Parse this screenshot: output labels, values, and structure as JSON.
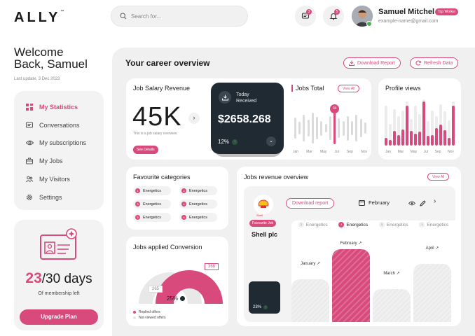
{
  "brand": {
    "name": "ALLY",
    "tm": "™",
    "accent": "#d94a7c",
    "dark": "#1f2a33"
  },
  "search": {
    "placeholder": "Search for..."
  },
  "notifications": {
    "messages_count": "3",
    "alerts_count": "5"
  },
  "user": {
    "name": "Samuel Mitchel",
    "tag": "Top Worker",
    "email": "example-name@gmail.com"
  },
  "welcome": {
    "line1": "Welcome",
    "line2": "Back, Samuel",
    "last_update": "Last update, 3 Dec 2023"
  },
  "sidebar": {
    "items": [
      {
        "label": "My Statistics",
        "icon": "grid-icon",
        "active": true
      },
      {
        "label": "Conversations",
        "icon": "chat-icon"
      },
      {
        "label": "My subscriptions",
        "icon": "eye-icon"
      },
      {
        "label": "My Jobs",
        "icon": "briefcase-icon"
      },
      {
        "label": "My Visitors",
        "icon": "users-icon"
      },
      {
        "label": "Settings",
        "icon": "gear-icon"
      }
    ]
  },
  "membership": {
    "days_used": "23",
    "days_total": "/30 days",
    "label": "Of membership left",
    "button": "Upgrade Plan"
  },
  "overview": {
    "title": "Your career overview",
    "download": "Download Report",
    "refresh": "Refresh Data"
  },
  "salary": {
    "title": "Job Salary Revenue",
    "value": "45K",
    "caption": "This is a job salary overview",
    "details": "See Details"
  },
  "today": {
    "label1": "Today",
    "label2": "Received",
    "amount": "$2658.268",
    "percent": "12%"
  },
  "jobs_total": {
    "title": "Jobs Total",
    "view_all": "View All",
    "highlight": "34",
    "highlight_fraction": 0.66,
    "months": [
      "Jan",
      "Mar",
      "May",
      "Jul",
      "Sep",
      "Nov"
    ],
    "bars": [
      0.42,
      0.25,
      0.55,
      0.35,
      0.62,
      0.45,
      0.3,
      0.18,
      0.48,
      0.66,
      0.4,
      0.3,
      0.5,
      0.28,
      0.55,
      0.38,
      0.22
    ],
    "highlight_index": 9
  },
  "profile": {
    "title": "Profile views",
    "months": [
      "Jan",
      "Mar",
      "May",
      "Jul",
      "Sep",
      "Nov"
    ],
    "bars": [
      0.82,
      0.45,
      0.75,
      0.6,
      0.72,
      0.9,
      0.55,
      0.82,
      0.65,
      0.95,
      0.5,
      0.72,
      0.6,
      0.85,
      0.7,
      0.52,
      0.9
    ],
    "fill": [
      0.2,
      0.25,
      0.4,
      0.35,
      0.45,
      0.9,
      0.55,
      0.3,
      0.45,
      0.95,
      0.4,
      0.3,
      0.6,
      0.5,
      0.45,
      0.3,
      0.9
    ]
  },
  "favourite": {
    "title": "Favourite categories",
    "items": [
      {
        "n": "1",
        "label": "Energetics"
      },
      {
        "n": "2",
        "label": "Energetics"
      },
      {
        "n": "3",
        "label": "Energetics"
      },
      {
        "n": "4",
        "label": "Energetics"
      },
      {
        "n": "5",
        "label": "Energetics"
      },
      {
        "n": "6",
        "label": "Energetics"
      }
    ]
  },
  "conversion": {
    "title": "Jobs applied Conversion",
    "value_high": "368",
    "value_low": "265",
    "percent": "25%",
    "percent_fraction": 0.25,
    "legend": [
      {
        "label": "Replied offers",
        "color": "#d94a7c"
      },
      {
        "label": "Not viewed offers",
        "color": "#e6e6e6"
      }
    ]
  },
  "jobs_revenue": {
    "title": "Jobs revenue overview",
    "view_all": "View All",
    "download": "Download report",
    "month": "February",
    "fav_tag": "Favourite Job",
    "company": "Shell plc",
    "company_logo": "Shell",
    "dark_percent": "23%",
    "tabs": [
      {
        "n": "2",
        "label": "Energetics"
      },
      {
        "n": "4",
        "label": "Energetics",
        "active": true
      },
      {
        "n": "3",
        "label": "Energetics"
      },
      {
        "n": "1",
        "label": "Energetics"
      }
    ],
    "bars": [
      {
        "label": "January",
        "value": 0.52
      },
      {
        "label": "February",
        "value": 0.88,
        "highlight": true
      },
      {
        "label": "March",
        "value": 0.4
      },
      {
        "label": "April",
        "value": 0.7
      }
    ]
  }
}
